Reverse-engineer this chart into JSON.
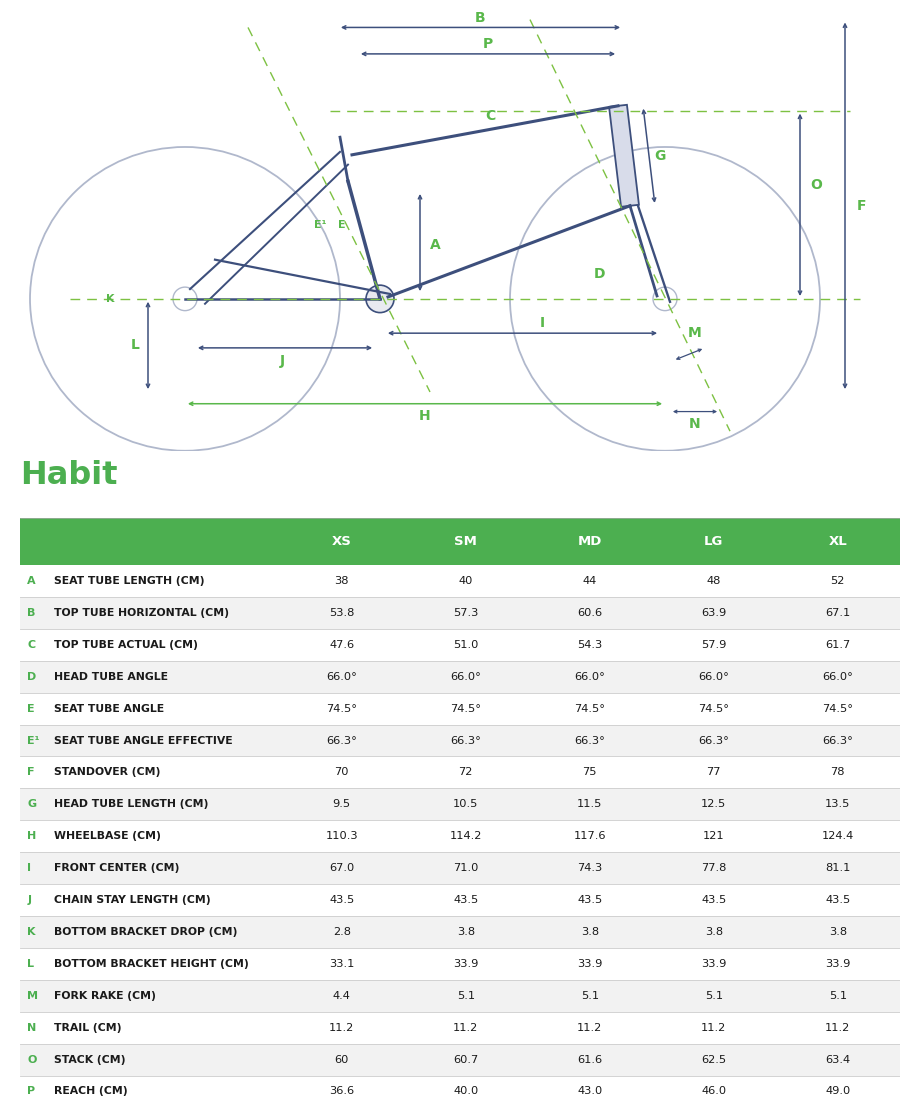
{
  "title": "Habit",
  "title_color": "#4caf50",
  "header_bg": "#4caf50",
  "header_text_color": "#ffffff",
  "letter_color": "#4caf50",
  "text_color": "#1a1a1a",
  "border_color": "#cccccc",
  "blue": "#3d4f7c",
  "green": "#5ab84b",
  "lgreen": "#7dc142",
  "wheel_color": "#b0b8cc",
  "columns": [
    "",
    "XS",
    "SM",
    "MD",
    "LG",
    "XL"
  ],
  "rows": [
    {
      "label": "A",
      "name": "SEAT TUBE LENGTH (CM)",
      "values": [
        "38",
        "40",
        "44",
        "48",
        "52"
      ]
    },
    {
      "label": "B",
      "name": "TOP TUBE HORIZONTAL (CM)",
      "values": [
        "53.8",
        "57.3",
        "60.6",
        "63.9",
        "67.1"
      ]
    },
    {
      "label": "C",
      "name": "TOP TUBE ACTUAL (CM)",
      "values": [
        "47.6",
        "51.0",
        "54.3",
        "57.9",
        "61.7"
      ]
    },
    {
      "label": "D",
      "name": "HEAD TUBE ANGLE",
      "values": [
        "66.0°",
        "66.0°",
        "66.0°",
        "66.0°",
        "66.0°"
      ]
    },
    {
      "label": "E",
      "name": "SEAT TUBE ANGLE",
      "values": [
        "74.5°",
        "74.5°",
        "74.5°",
        "74.5°",
        "74.5°"
      ]
    },
    {
      "label": "E¹",
      "name": "SEAT TUBE ANGLE EFFECTIVE",
      "values": [
        "66.3°",
        "66.3°",
        "66.3°",
        "66.3°",
        "66.3°"
      ]
    },
    {
      "label": "F",
      "name": "STANDOVER (CM)",
      "values": [
        "70",
        "72",
        "75",
        "77",
        "78"
      ]
    },
    {
      "label": "G",
      "name": "HEAD TUBE LENGTH (CM)",
      "values": [
        "9.5",
        "10.5",
        "11.5",
        "12.5",
        "13.5"
      ]
    },
    {
      "label": "H",
      "name": "WHEELBASE (CM)",
      "values": [
        "110.3",
        "114.2",
        "117.6",
        "121",
        "124.4"
      ]
    },
    {
      "label": "I",
      "name": "FRONT CENTER (CM)",
      "values": [
        "67.0",
        "71.0",
        "74.3",
        "77.8",
        "81.1"
      ]
    },
    {
      "label": "J",
      "name": "CHAIN STAY LENGTH (CM)",
      "values": [
        "43.5",
        "43.5",
        "43.5",
        "43.5",
        "43.5"
      ]
    },
    {
      "label": "K",
      "name": "BOTTOM BRACKET DROP (CM)",
      "values": [
        "2.8",
        "3.8",
        "3.8",
        "3.8",
        "3.8"
      ]
    },
    {
      "label": "L",
      "name": "BOTTOM BRACKET HEIGHT (CM)",
      "values": [
        "33.1",
        "33.9",
        "33.9",
        "33.9",
        "33.9"
      ]
    },
    {
      "label": "M",
      "name": "FORK RAKE (CM)",
      "values": [
        "4.4",
        "5.1",
        "5.1",
        "5.1",
        "5.1"
      ]
    },
    {
      "label": "N",
      "name": "TRAIL (CM)",
      "values": [
        "11.2",
        "11.2",
        "11.2",
        "11.2",
        "11.2"
      ]
    },
    {
      "label": "O",
      "name": "STACK (CM)",
      "values": [
        "60",
        "60.7",
        "61.6",
        "62.5",
        "63.4"
      ]
    },
    {
      "label": "P",
      "name": "REACH (CM)",
      "values": [
        "36.6",
        "40.0",
        "43.0",
        "46.0",
        "49.0"
      ]
    }
  ],
  "background_color": "#ffffff"
}
